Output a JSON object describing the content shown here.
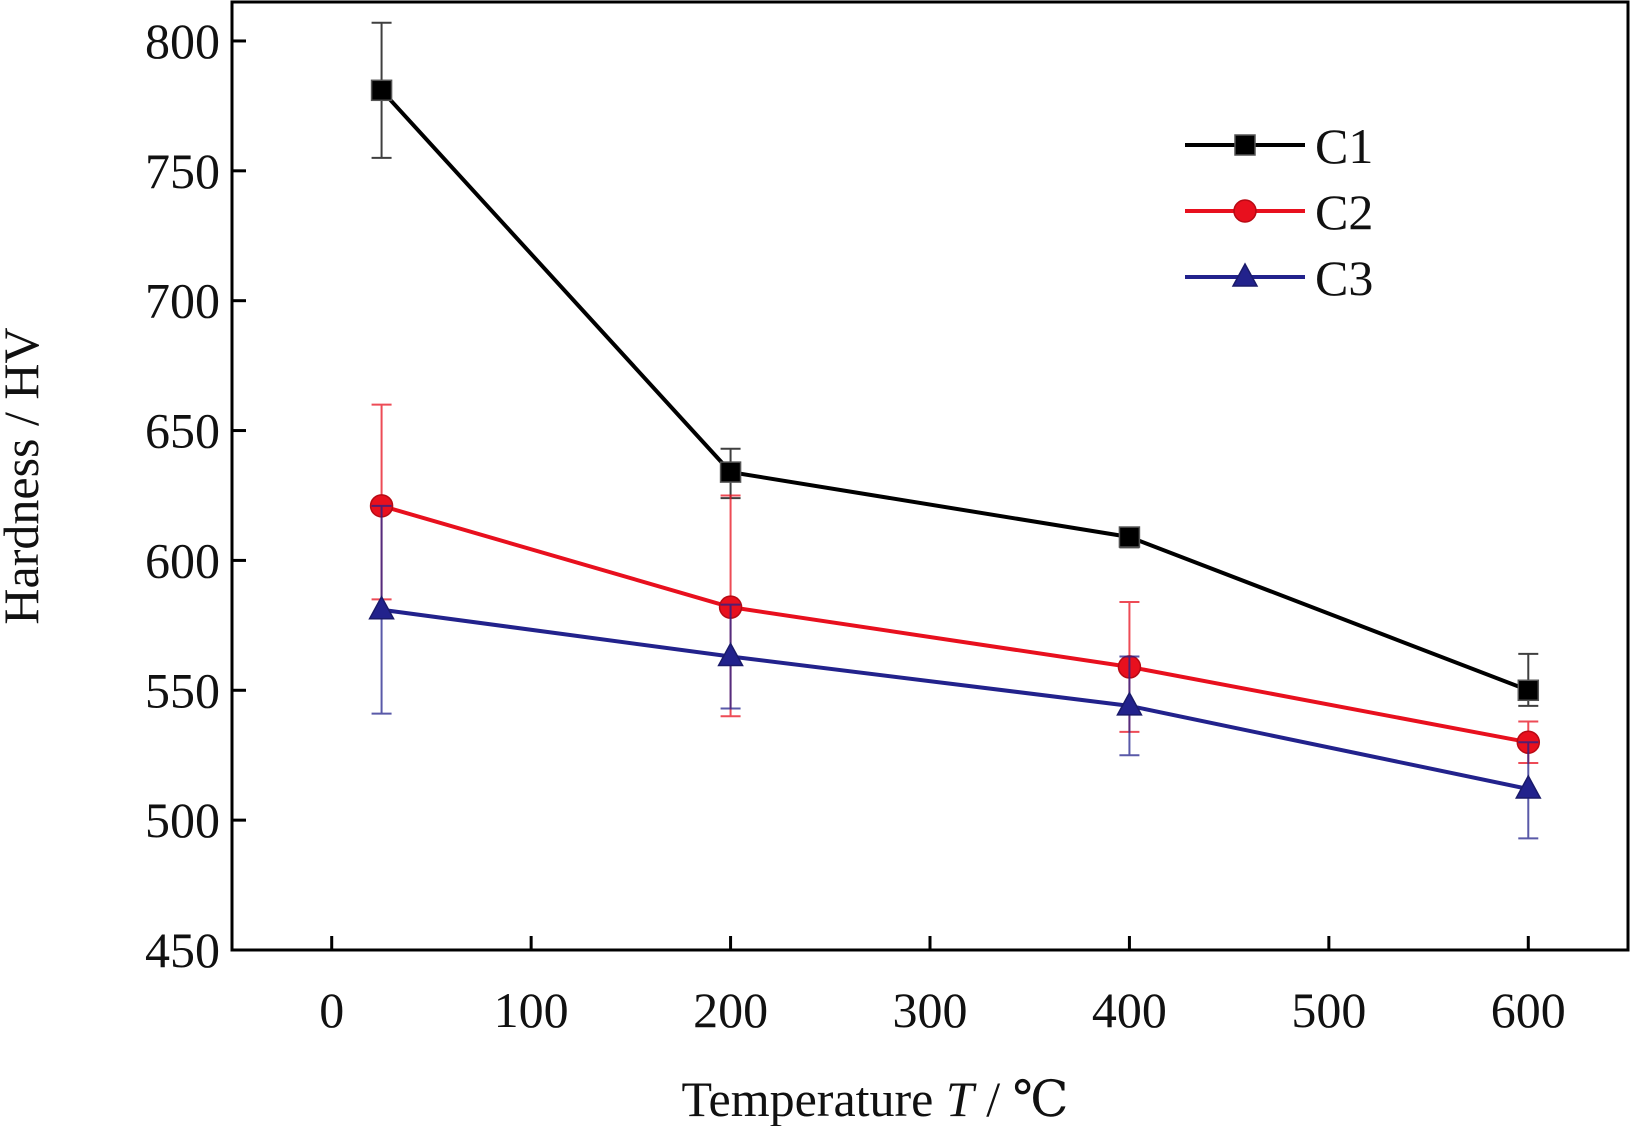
{
  "chart_data": {
    "type": "line",
    "title": "",
    "xlabel_prefix": "Temperature ",
    "xlabel_symbol": "T",
    "xlabel_suffix": " / ℃",
    "ylabel": "Hardness / HV",
    "xlim": [
      -50,
      650
    ],
    "ylim": [
      450,
      815
    ],
    "xticks": [
      0,
      100,
      200,
      300,
      400,
      500,
      600
    ],
    "xtick_labels": [
      "0",
      "100",
      "200",
      "300",
      "400",
      "500",
      "600"
    ],
    "yticks": [
      450,
      500,
      550,
      600,
      650,
      700,
      750,
      800
    ],
    "ytick_labels": [
      "450",
      "500",
      "550",
      "600",
      "650",
      "700",
      "750",
      "800"
    ],
    "grid": false,
    "legend_position": "top-right",
    "series": [
      {
        "name": "C1",
        "color": "#000000",
        "marker": "square",
        "x": [
          25,
          200,
          400,
          600
        ],
        "y": [
          781,
          634,
          609,
          550
        ],
        "err_low": [
          755,
          624,
          605,
          544
        ],
        "err_high": [
          807,
          643,
          612,
          564
        ]
      },
      {
        "name": "C2",
        "color": "#e8101e",
        "marker": "circle",
        "x": [
          25,
          200,
          400,
          600
        ],
        "y": [
          621,
          582,
          559,
          530
        ],
        "err_low": [
          585,
          540,
          534,
          522
        ],
        "err_high": [
          660,
          625,
          584,
          538
        ]
      },
      {
        "name": "C3",
        "color": "#22228c",
        "marker": "triangle",
        "x": [
          25,
          200,
          400,
          600
        ],
        "y": [
          581,
          563,
          544,
          512
        ],
        "err_low": [
          541,
          543,
          525,
          493
        ],
        "err_high": [
          621,
          583,
          563,
          530
        ]
      }
    ]
  }
}
